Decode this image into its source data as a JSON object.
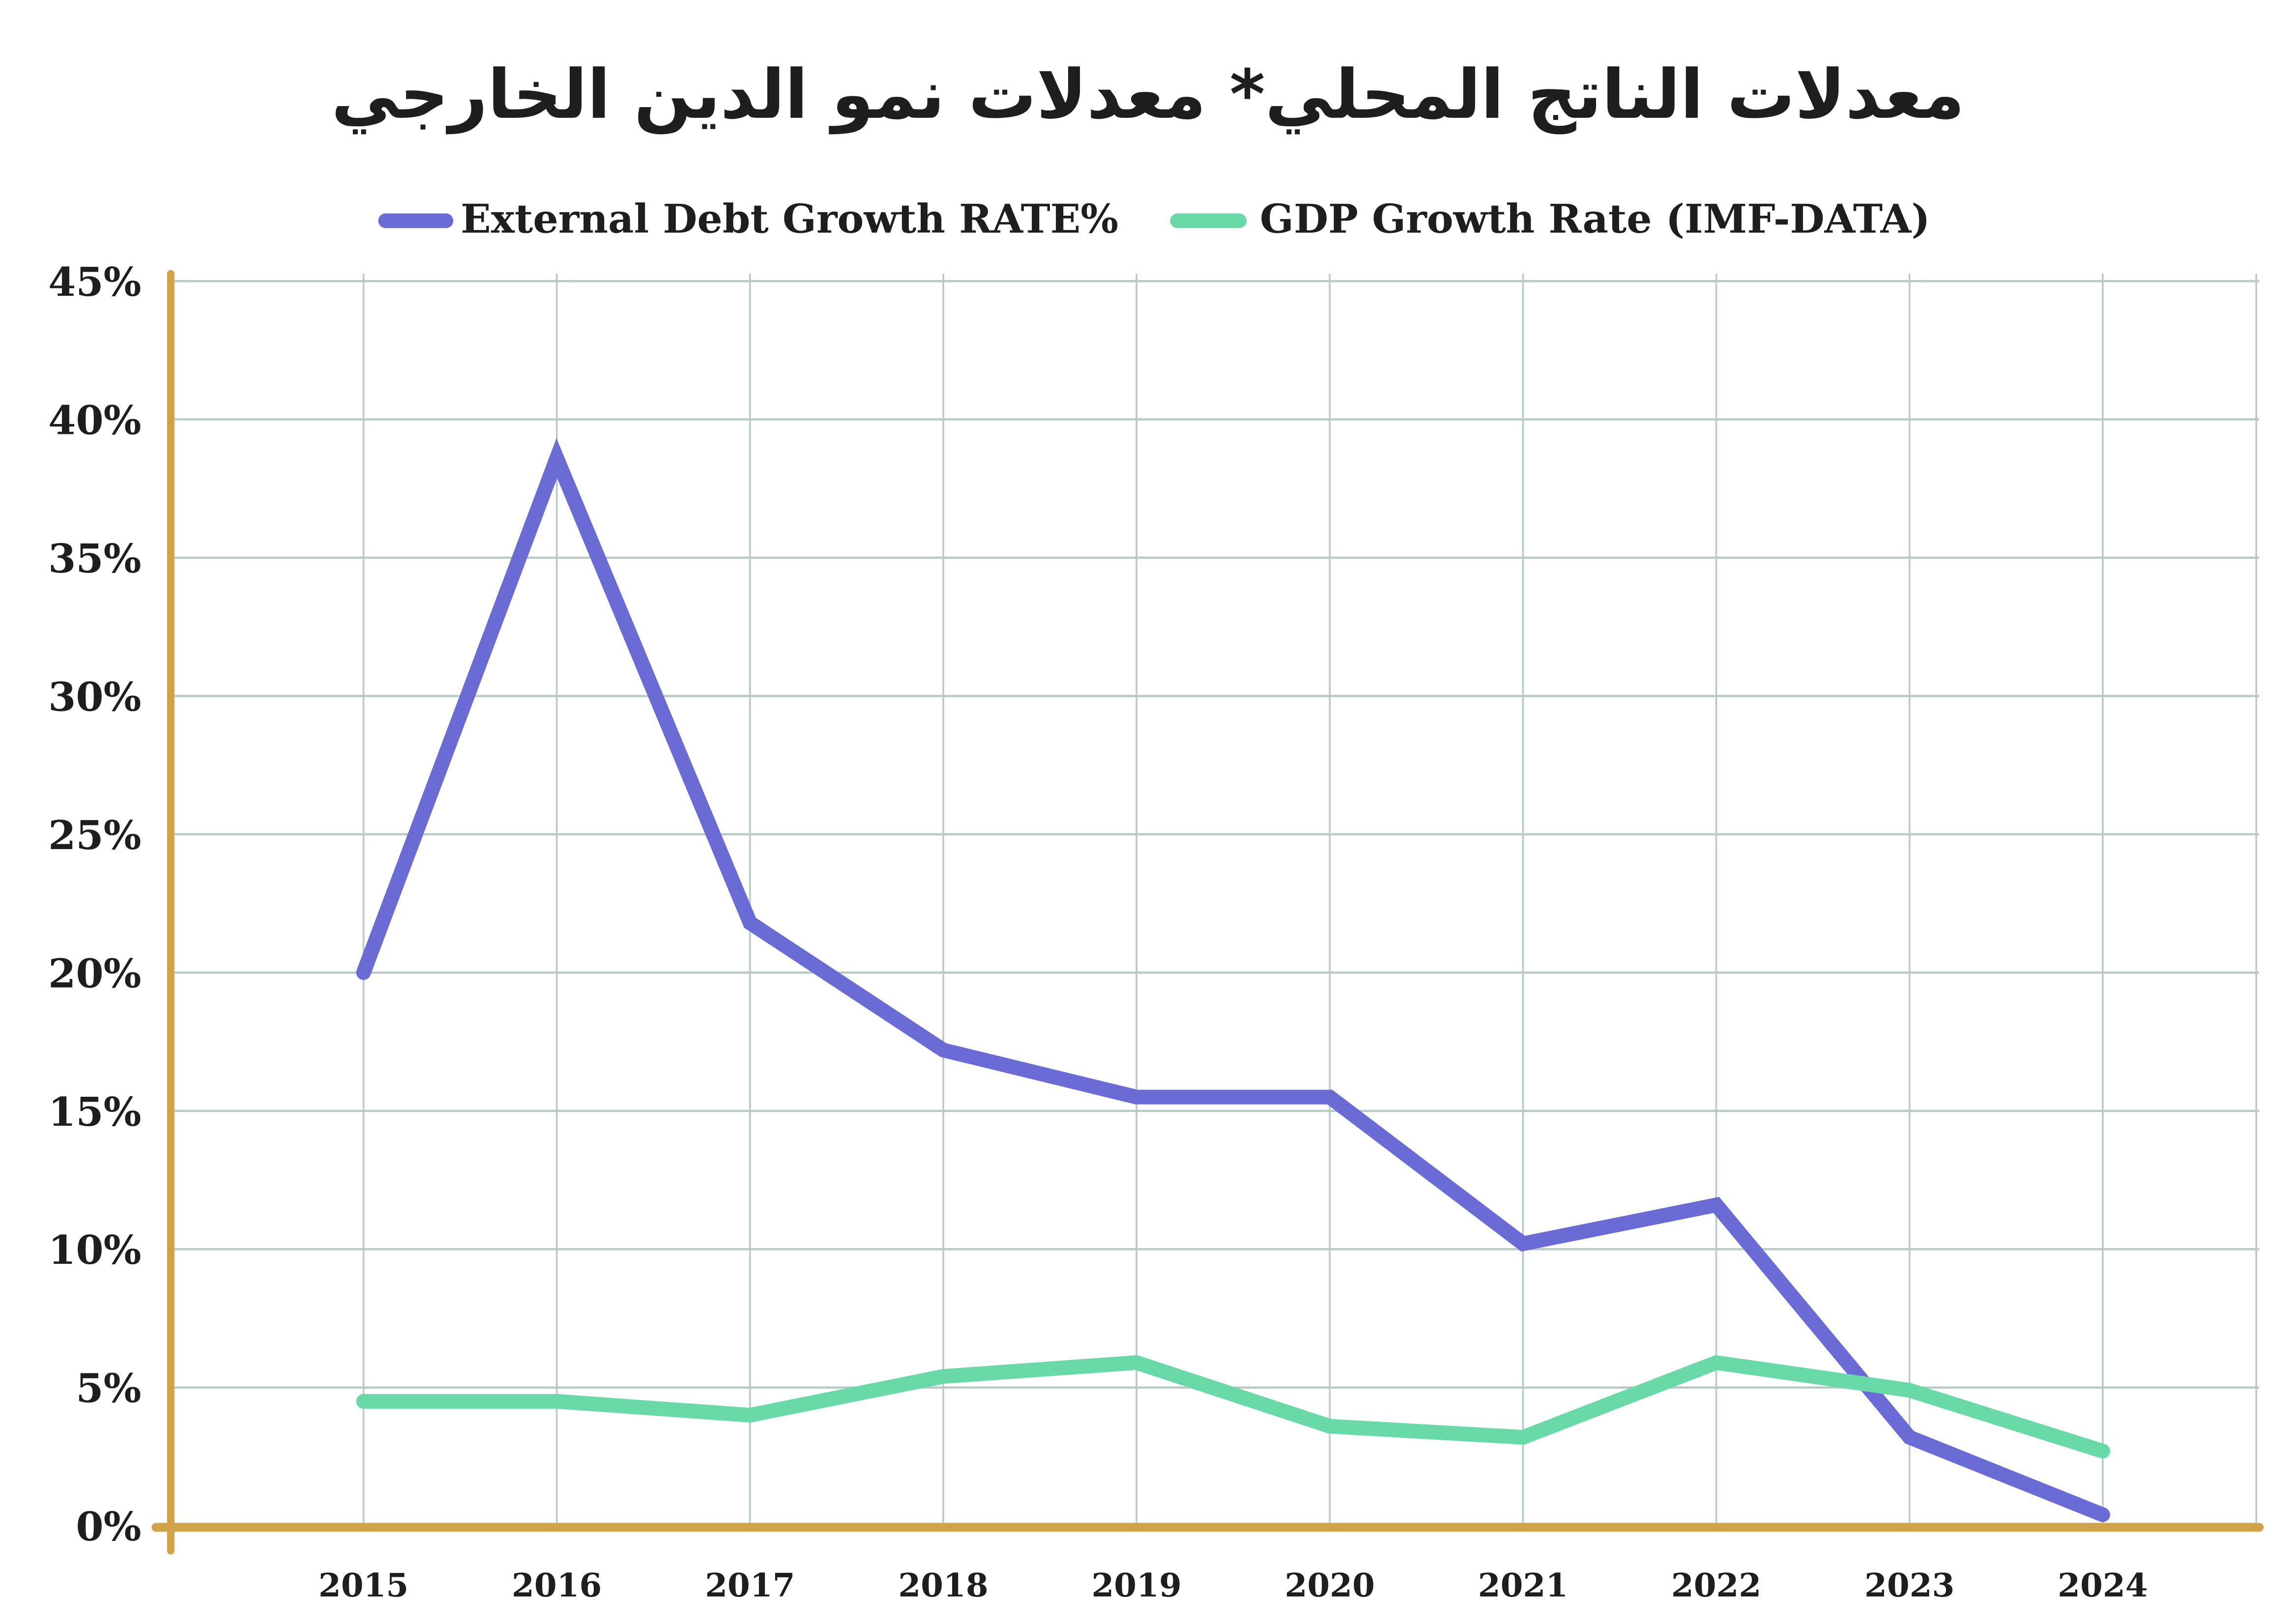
{
  "chart_data": {
    "type": "line",
    "title": "معدلات الناتج المحلي* معدلات نمو الدين الخارجي",
    "xlabel": "",
    "ylabel": "",
    "categories": [
      "2015",
      "2016",
      "2017",
      "2018",
      "2019",
      "2020",
      "2021",
      "2022",
      "2023",
      "2024"
    ],
    "yticks": [
      "0%",
      "5%",
      "10%",
      "15%",
      "20%",
      "25%",
      "30%",
      "35%",
      "40%",
      "45%"
    ],
    "ylim": [
      0,
      45
    ],
    "grid": true,
    "legend_position": "top-center",
    "series": [
      {
        "name": "External Debt Growth RATE%",
        "color": "#6b6bd6",
        "values": [
          20.0,
          38.6,
          21.8,
          17.2,
          15.5,
          15.5,
          10.2,
          11.6,
          3.2,
          0.4
        ]
      },
      {
        "name": "GDP Growth Rate (IMF-DATA)",
        "color": "#6ad9a8",
        "values": [
          4.5,
          4.5,
          4.0,
          5.4,
          5.9,
          3.6,
          3.2,
          5.9,
          4.9,
          2.7
        ]
      }
    ],
    "colors": {
      "axis": "#d1a24a",
      "grid": "#b9c9c6",
      "text": "#1e1e1e"
    }
  }
}
